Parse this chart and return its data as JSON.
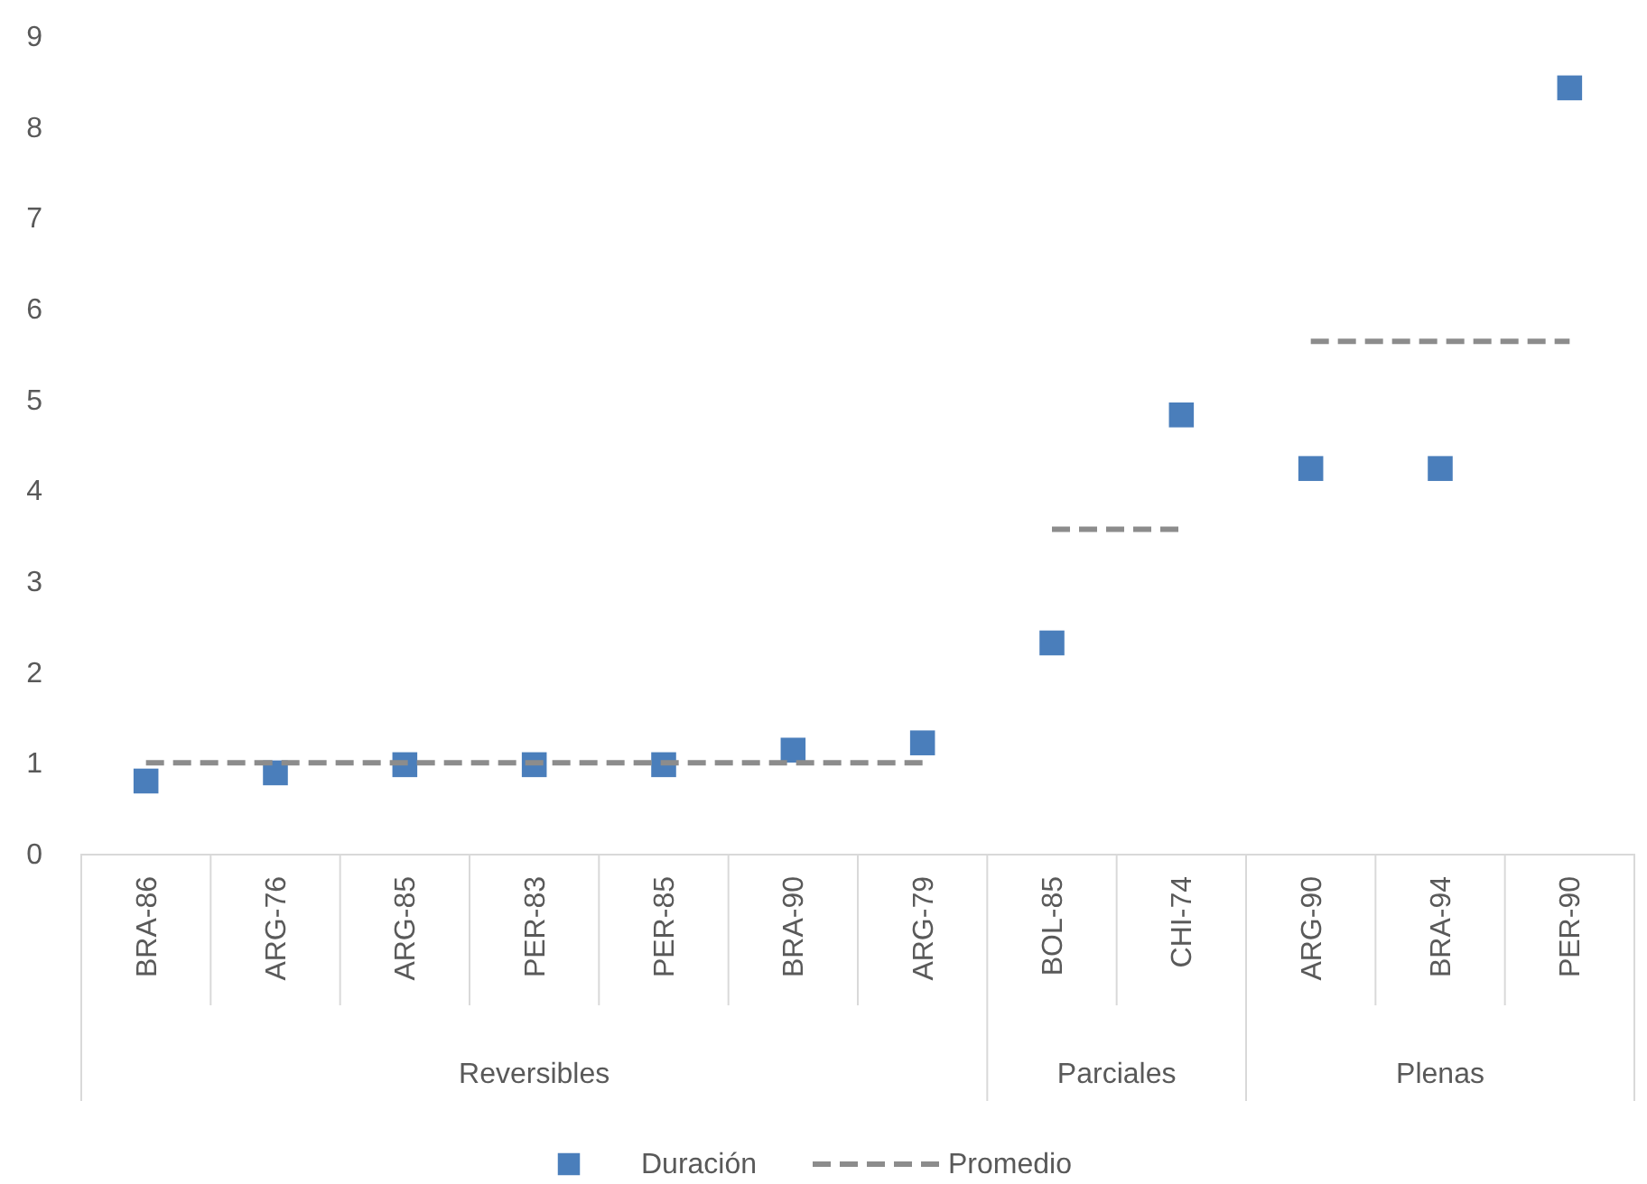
{
  "chart_data": {
    "type": "scatter",
    "categories": [
      "BRA-86",
      "ARG-76",
      "ARG-85",
      "PER-83",
      "PER-85",
      "BRA-90",
      "ARG-79",
      "BOL-85",
      "CHI-74",
      "ARG-90",
      "BRA-94",
      "PER-90"
    ],
    "series": [
      {
        "name": "Duración",
        "marker": "square",
        "color": "#4a7ebb",
        "values": [
          0.8,
          0.89,
          0.98,
          0.98,
          0.98,
          1.14,
          1.22,
          2.32,
          4.83,
          4.24,
          4.24,
          8.43
        ]
      },
      {
        "name": "Promedio",
        "type": "line",
        "line_style": "dashed",
        "color": "#8c8c8c",
        "values": [
          1.0,
          1.0,
          1.0,
          1.0,
          1.0,
          1.0,
          1.0,
          3.57,
          3.57,
          5.64,
          5.64,
          5.64
        ]
      }
    ],
    "annotations": [
      "Reversibles",
      "Parciales",
      "Plenas"
    ],
    "ylim": [
      0,
      9
    ],
    "yticks": [
      0,
      1,
      2,
      3,
      4,
      5,
      6,
      7,
      8,
      9
    ],
    "grid": false,
    "legend": "bottom"
  }
}
